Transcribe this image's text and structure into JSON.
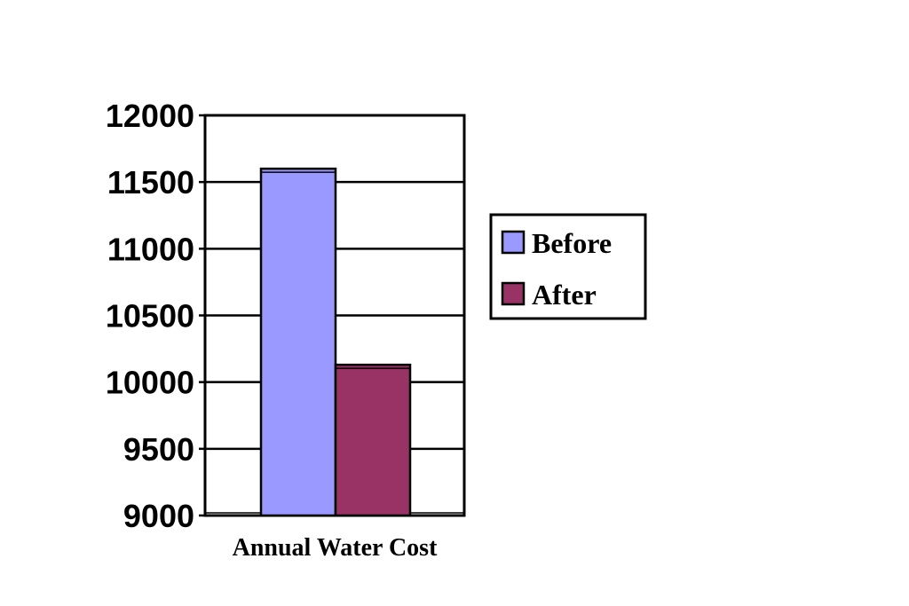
{
  "chart_data": {
    "type": "bar",
    "categories": [
      "Annual Water Cost"
    ],
    "series": [
      {
        "name": "Before",
        "values": [
          11600
        ],
        "color": "#9999FF"
      },
      {
        "name": "After",
        "values": [
          10130
        ],
        "color": "#993366"
      }
    ],
    "ylim": [
      9000,
      12000
    ],
    "yticks": [
      9000,
      9500,
      10000,
      10500,
      11000,
      11500,
      12000
    ],
    "title": "",
    "xlabel": "",
    "ylabel": "",
    "grid": true,
    "legend": "right"
  }
}
